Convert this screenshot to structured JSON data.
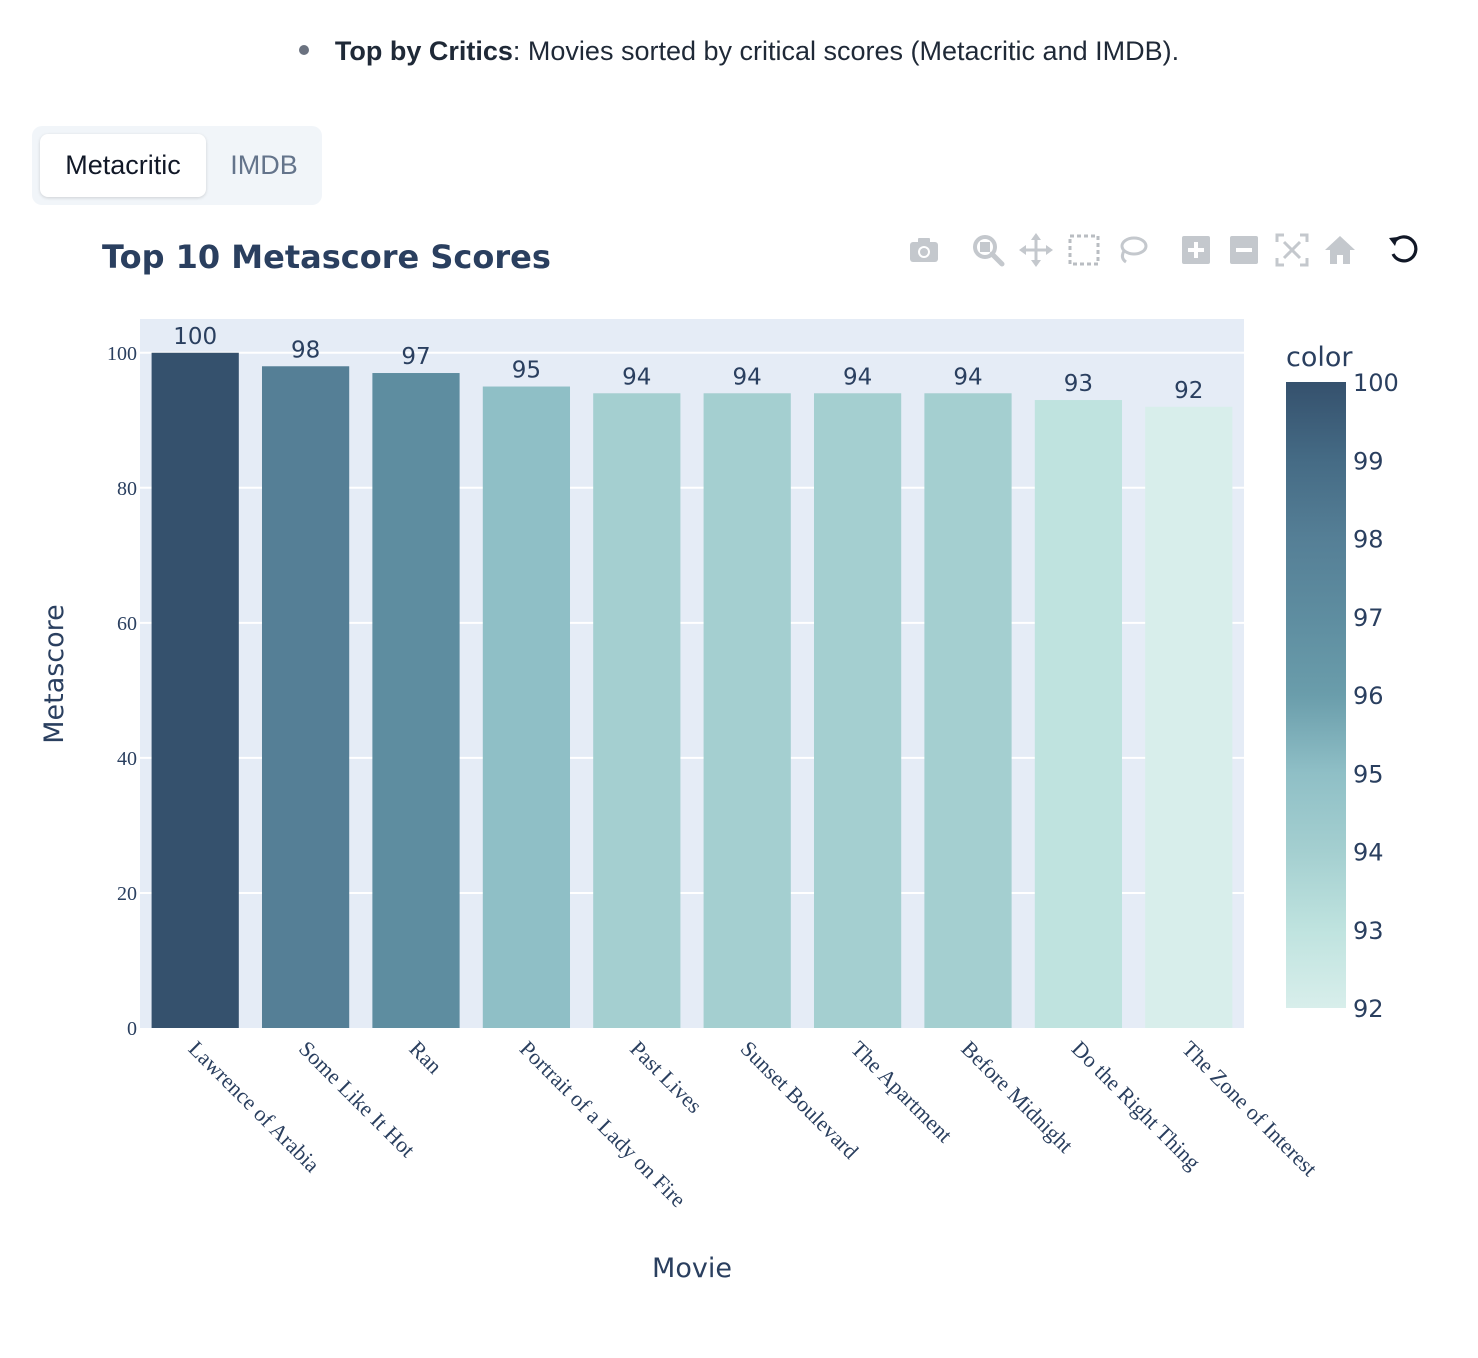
{
  "intro": {
    "term": "Top by Critics",
    "text": ": Movies sorted by critical scores (Metacritic and IMDB)."
  },
  "tabs": [
    {
      "label": "Metacritic",
      "active": true
    },
    {
      "label": "IMDB",
      "active": false
    }
  ],
  "modebar": {
    "icons": [
      "camera-icon",
      "zoom-icon",
      "pan-icon",
      "box-select-icon",
      "lasso-select-icon",
      "zoom-in-icon",
      "zoom-out-icon",
      "autoscale-icon",
      "reset-axes-icon",
      "reset-icon"
    ]
  },
  "chart_data": {
    "type": "bar",
    "title": "Top 10 Metascore Scores",
    "xlabel": "Movie",
    "ylabel": "Metascore",
    "categories": [
      "Lawrence of Arabia",
      "Some Like It Hot",
      "Ran",
      "Portrait of a Lady on Fire",
      "Past Lives",
      "Sunset Boulevard",
      "The Apartment",
      "Before Midnight",
      "Do the Right Thing",
      "The Zone of Interest"
    ],
    "values": [
      100,
      98,
      97,
      95,
      94,
      94,
      94,
      94,
      93,
      92
    ],
    "data_labels": [
      "100",
      "98",
      "97",
      "95",
      "94",
      "94",
      "94",
      "94",
      "93",
      "92"
    ],
    "ylim": [
      0,
      105
    ],
    "yticks": [
      0,
      20,
      40,
      60,
      80,
      100
    ],
    "grid": true,
    "colorbar": {
      "title": "color",
      "range": [
        92,
        100
      ],
      "ticks": [
        92,
        93,
        94,
        95,
        96,
        97,
        98,
        99,
        100
      ],
      "colorscale": [
        "#d8eeeb",
        "#bfe3df",
        "#a4cfd0",
        "#8fbfc6",
        "#6a9dab",
        "#5e8da0",
        "#557f96",
        "#456b85",
        "#35516d"
      ]
    },
    "plot_bg": "#e5ecf6",
    "text_color": "#2a3f5f"
  }
}
